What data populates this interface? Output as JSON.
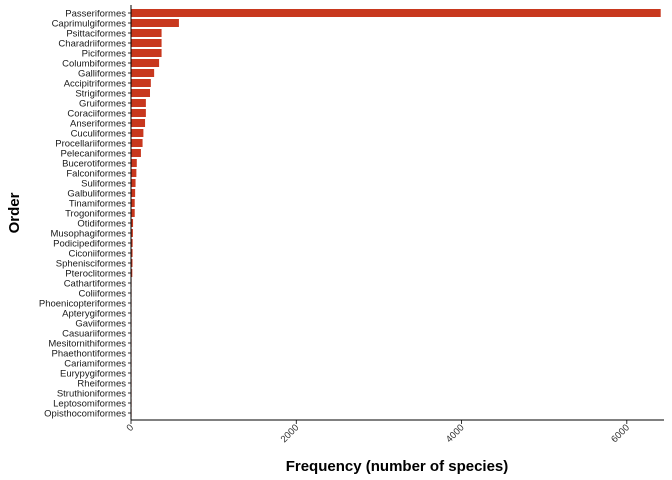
{
  "chart_data": {
    "type": "bar",
    "orientation": "horizontal",
    "xlabel": "Frequency (number of species)",
    "ylabel": "Order",
    "xlim": [
      0,
      6450
    ],
    "xticks": [
      0,
      2000,
      4000,
      6000
    ],
    "bar_color": "#c8381e",
    "categories": [
      "Passeriformes",
      "Caprimulgiformes",
      "Psittaciformes",
      "Charadriiformes",
      "Piciformes",
      "Columbiformes",
      "Galliformes",
      "Accipitriformes",
      "Strigiformes",
      "Gruiformes",
      "Coraciiformes",
      "Anseriformes",
      "Cuculiformes",
      "Procellariiformes",
      "Pelecaniformes",
      "Bucerotiformes",
      "Falconiformes",
      "Suliformes",
      "Galbuliformes",
      "Tinamiformes",
      "Trogoniformes",
      "Otidiformes",
      "Musophagiformes",
      "Podicipediformes",
      "Ciconiiformes",
      "Sphenisciformes",
      "Pteroclitormes",
      "Cathartiformes",
      "Coliiformes",
      "Phoenicopteriformes",
      "Apterygiformes",
      "Gaviiformes",
      "Casuariiformes",
      "Mesitornithiformes",
      "Phaethontiformes",
      "Cariamiformes",
      "Eurypygiformes",
      "Rheiformes",
      "Struthioniformes",
      "Leptosomiformes",
      "Opisthocomiformes"
    ],
    "values": [
      6410,
      580,
      370,
      370,
      370,
      340,
      280,
      240,
      230,
      180,
      180,
      170,
      150,
      140,
      120,
      70,
      65,
      55,
      50,
      45,
      45,
      25,
      23,
      20,
      19,
      18,
      16,
      7,
      6,
      6,
      5,
      5,
      4,
      3,
      3,
      2,
      2,
      2,
      2,
      1,
      1
    ]
  }
}
